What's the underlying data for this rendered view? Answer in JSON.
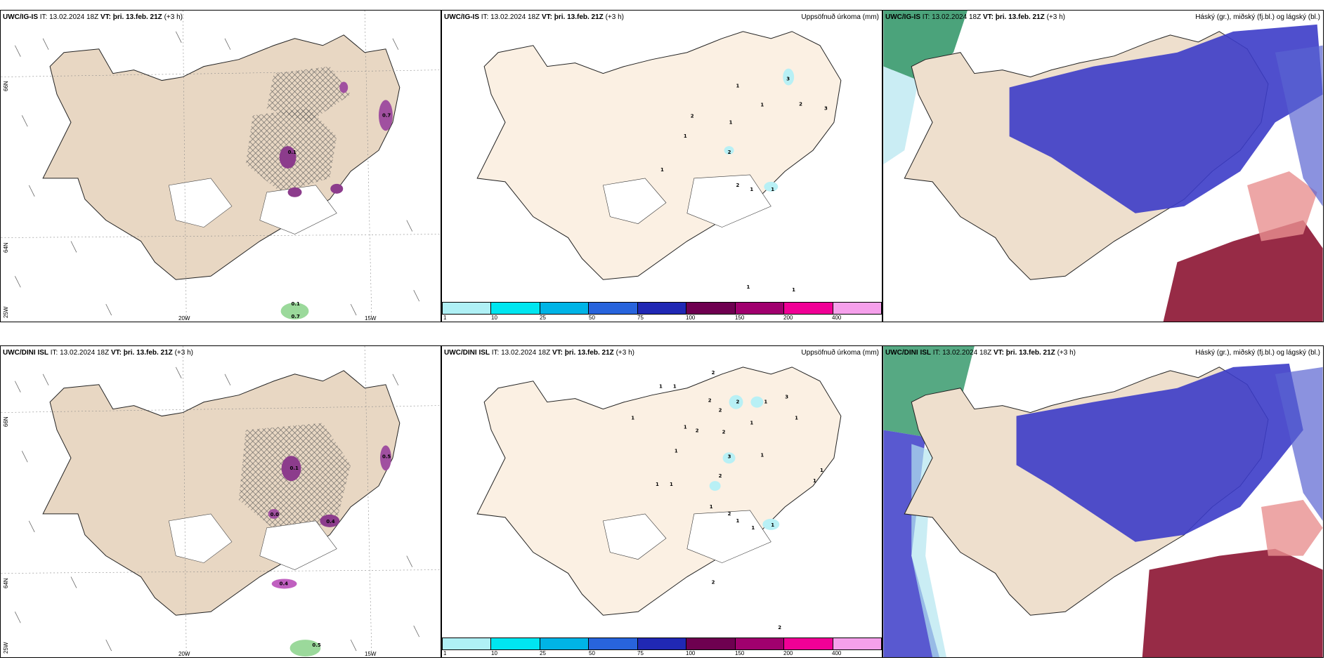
{
  "panels": [
    {
      "model": "UWC/IG-IS",
      "it": "IT: 13.02.2024 18Z",
      "vt_label": "VT:",
      "vt": "þri. 13.feb. 21Z",
      "lead": "(+3 h)",
      "right": "",
      "type": "wind"
    },
    {
      "model": "UWC/IG-IS",
      "it": "IT: 13.02.2024 18Z",
      "vt_label": "VT:",
      "vt": "þri. 13.feb. 21Z",
      "lead": "(+3 h)",
      "right": "Uppsöfnuð úrkoma (mm)",
      "type": "precip"
    },
    {
      "model": "UWC/IG-IS",
      "it": "IT: 13.02.2024 18Z",
      "vt_label": "VT:",
      "vt": "þri. 13.feb. 21Z",
      "lead": "(+3 h)",
      "right": "Háský (gr.), miðský (fj.bl.) og lágský (bl.)",
      "type": "cloud"
    },
    {
      "model": "UWC/DINI ISL",
      "it": "IT: 13.02.2024 18Z",
      "vt_label": "VT:",
      "vt": "þri. 13.feb. 21Z",
      "lead": "(+3 h)",
      "right": "",
      "type": "wind"
    },
    {
      "model": "UWC/DINI ISL",
      "it": "IT: 13.02.2024 18Z",
      "vt_label": "VT:",
      "vt": "þri. 13.feb. 21Z",
      "lead": "(+3 h)",
      "right": "Uppsöfnuð úrkoma (mm)",
      "type": "precip"
    },
    {
      "model": "UWC/DINI ISL",
      "it": "IT: 13.02.2024 18Z",
      "vt_label": "VT:",
      "vt": "þri. 13.feb. 21Z",
      "lead": "(+3 h)",
      "right": "Háský (gr.), miðský (fj.bl.) og lágský (bl.)",
      "type": "cloud"
    }
  ],
  "axis_labels": {
    "lon_20w": "20W",
    "lon_15w": "15W",
    "lat_66n": "66N",
    "lat_64n": "64N",
    "lon_25w": "25W"
  },
  "colorbar": {
    "labels": [
      "1",
      "10",
      "25",
      "50",
      "75",
      "100",
      "150",
      "200",
      "400"
    ],
    "colors": [
      "#aff0f5",
      "#00e6f0",
      "#00b4e6",
      "#2864dc",
      "#2028b4",
      "#6e0050",
      "#a0006e",
      "#f00096",
      "#f5a0eb"
    ]
  },
  "precip_top_values": [
    "3",
    "2",
    "3",
    "1",
    "1",
    "2",
    "1",
    "2",
    "1",
    "2",
    "1",
    "1",
    "1",
    "1",
    "1"
  ],
  "precip_bottom_values": [
    "2",
    "1",
    "1",
    "2",
    "2",
    "1",
    "2",
    "3",
    "1",
    "1",
    "2",
    "2",
    "1",
    "1",
    "3",
    "1",
    "1",
    "2",
    "1",
    "1",
    "2",
    "1",
    "1",
    "1",
    "1",
    "2",
    "1",
    "1",
    "2"
  ],
  "wind_top_values": [
    "0.1",
    "0.7",
    "0.1",
    "0.7"
  ],
  "wind_bottom_values": [
    "0.5",
    "0.4",
    "0.1",
    "0.0",
    "0.4",
    "0.5"
  ],
  "colors": {
    "land": "#f2e4d3",
    "land_wind": "#e8d7c3",
    "cloud_low": "#3c3cc8",
    "cloud_high": "#1e8c5a",
    "cloud_mid": "#8c1432"
  }
}
